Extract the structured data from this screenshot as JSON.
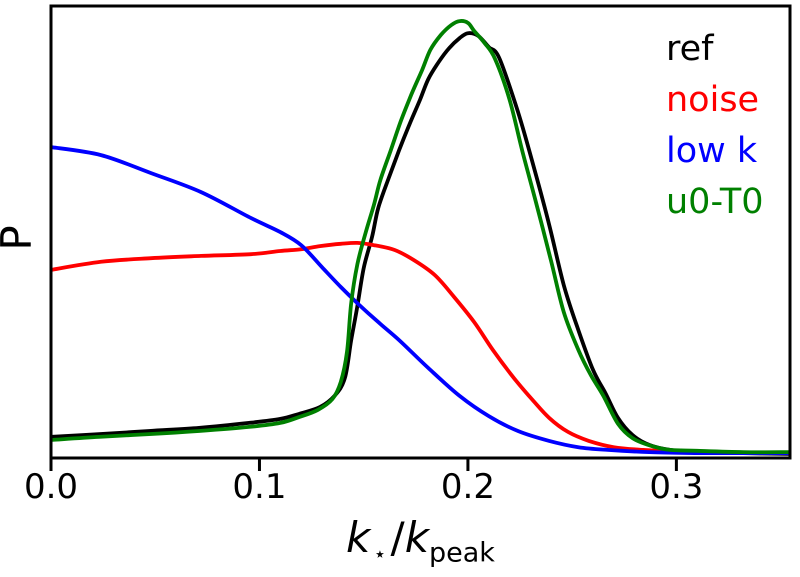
{
  "figure": {
    "background": "#ffffff",
    "frame_color": "#000000"
  },
  "chart_data": {
    "type": "line",
    "title": "",
    "ylabel": "P",
    "xlabel_text": "k⋆/kpeak",
    "xlabel_parts": {
      "k1": "k",
      "star": "⋆",
      "slash": "/",
      "k2": "k",
      "peak": "peak"
    },
    "xlim": [
      0,
      0.3545
    ],
    "ylim": [
      0,
      1.004
    ],
    "grid": false,
    "y_ticks": [],
    "x_ticks": [
      {
        "value": 0.0,
        "label": "0.0"
      },
      {
        "value": 0.1,
        "label": "0.1"
      },
      {
        "value": 0.2,
        "label": "0.2"
      },
      {
        "value": 0.3,
        "label": "0.3"
      }
    ],
    "legend": {
      "position": "upper-right",
      "items": [
        {
          "label": "ref",
          "color": "#000000"
        },
        {
          "label": "noise",
          "color": "#ff0000"
        },
        {
          "label": "low k",
          "color": "#0000ff"
        },
        {
          "label": "u0-T0",
          "color": "#008000"
        }
      ]
    },
    "note": "P values normalized to axis height (no y tick labels shown in figure)",
    "series": [
      {
        "name": "ref",
        "color": "#000000",
        "points": [
          [
            0.0,
            0.047
          ],
          [
            0.023,
            0.053
          ],
          [
            0.047,
            0.06
          ],
          [
            0.071,
            0.067
          ],
          [
            0.095,
            0.078
          ],
          [
            0.11,
            0.087
          ],
          [
            0.119,
            0.098
          ],
          [
            0.129,
            0.113
          ],
          [
            0.136,
            0.138
          ],
          [
            0.141,
            0.178
          ],
          [
            0.144,
            0.262
          ],
          [
            0.147,
            0.338
          ],
          [
            0.15,
            0.422
          ],
          [
            0.154,
            0.491
          ],
          [
            0.157,
            0.556
          ],
          [
            0.162,
            0.622
          ],
          [
            0.167,
            0.684
          ],
          [
            0.172,
            0.742
          ],
          [
            0.177,
            0.796
          ],
          [
            0.181,
            0.842
          ],
          [
            0.186,
            0.88
          ],
          [
            0.191,
            0.911
          ],
          [
            0.196,
            0.933
          ],
          [
            0.2,
            0.944
          ],
          [
            0.205,
            0.938
          ],
          [
            0.21,
            0.913
          ],
          [
            0.215,
            0.889
          ],
          [
            0.224,
            0.769
          ],
          [
            0.232,
            0.64
          ],
          [
            0.239,
            0.518
          ],
          [
            0.246,
            0.384
          ],
          [
            0.253,
            0.284
          ],
          [
            0.26,
            0.196
          ],
          [
            0.266,
            0.144
          ],
          [
            0.272,
            0.089
          ],
          [
            0.279,
            0.051
          ],
          [
            0.287,
            0.029
          ],
          [
            0.297,
            0.018
          ],
          [
            0.31,
            0.013
          ],
          [
            0.332,
            0.011
          ],
          [
            0.354,
            0.009
          ]
        ]
      },
      {
        "name": "noise",
        "color": "#ff0000",
        "points": [
          [
            0.0,
            0.418
          ],
          [
            0.024,
            0.436
          ],
          [
            0.048,
            0.444
          ],
          [
            0.072,
            0.449
          ],
          [
            0.096,
            0.453
          ],
          [
            0.11,
            0.46
          ],
          [
            0.12,
            0.464
          ],
          [
            0.129,
            0.471
          ],
          [
            0.139,
            0.476
          ],
          [
            0.147,
            0.478
          ],
          [
            0.155,
            0.473
          ],
          [
            0.165,
            0.462
          ],
          [
            0.174,
            0.44
          ],
          [
            0.184,
            0.407
          ],
          [
            0.193,
            0.36
          ],
          [
            0.203,
            0.302
          ],
          [
            0.212,
            0.24
          ],
          [
            0.222,
            0.178
          ],
          [
            0.231,
            0.129
          ],
          [
            0.239,
            0.089
          ],
          [
            0.248,
            0.058
          ],
          [
            0.258,
            0.038
          ],
          [
            0.27,
            0.024
          ],
          [
            0.284,
            0.018
          ],
          [
            0.306,
            0.013
          ],
          [
            0.332,
            0.012
          ],
          [
            0.354,
            0.011
          ]
        ]
      },
      {
        "name": "low k",
        "color": "#0000ff",
        "points": [
          [
            0.0,
            0.691
          ],
          [
            0.024,
            0.673
          ],
          [
            0.048,
            0.633
          ],
          [
            0.072,
            0.591
          ],
          [
            0.096,
            0.533
          ],
          [
            0.11,
            0.502
          ],
          [
            0.12,
            0.473
          ],
          [
            0.13,
            0.424
          ],
          [
            0.139,
            0.38
          ],
          [
            0.147,
            0.344
          ],
          [
            0.157,
            0.302
          ],
          [
            0.167,
            0.262
          ],
          [
            0.181,
            0.2
          ],
          [
            0.196,
            0.138
          ],
          [
            0.21,
            0.093
          ],
          [
            0.224,
            0.06
          ],
          [
            0.239,
            0.038
          ],
          [
            0.253,
            0.024
          ],
          [
            0.267,
            0.018
          ],
          [
            0.287,
            0.013
          ],
          [
            0.31,
            0.011
          ],
          [
            0.332,
            0.011
          ],
          [
            0.354,
            0.011
          ]
        ]
      },
      {
        "name": "u0-T0",
        "color": "#008000",
        "points": [
          [
            0.0,
            0.04
          ],
          [
            0.023,
            0.047
          ],
          [
            0.047,
            0.053
          ],
          [
            0.071,
            0.06
          ],
          [
            0.095,
            0.069
          ],
          [
            0.11,
            0.078
          ],
          [
            0.119,
            0.091
          ],
          [
            0.128,
            0.107
          ],
          [
            0.135,
            0.131
          ],
          [
            0.139,
            0.169
          ],
          [
            0.142,
            0.236
          ],
          [
            0.144,
            0.344
          ],
          [
            0.147,
            0.431
          ],
          [
            0.151,
            0.502
          ],
          [
            0.155,
            0.564
          ],
          [
            0.158,
            0.618
          ],
          [
            0.163,
            0.684
          ],
          [
            0.168,
            0.751
          ],
          [
            0.173,
            0.809
          ],
          [
            0.178,
            0.862
          ],
          [
            0.182,
            0.907
          ],
          [
            0.187,
            0.94
          ],
          [
            0.192,
            0.962
          ],
          [
            0.196,
            0.971
          ],
          [
            0.2,
            0.967
          ],
          [
            0.203,
            0.949
          ],
          [
            0.208,
            0.922
          ],
          [
            0.213,
            0.887
          ],
          [
            0.22,
            0.796
          ],
          [
            0.226,
            0.684
          ],
          [
            0.233,
            0.562
          ],
          [
            0.24,
            0.436
          ],
          [
            0.246,
            0.324
          ],
          [
            0.253,
            0.24
          ],
          [
            0.259,
            0.184
          ],
          [
            0.265,
            0.138
          ],
          [
            0.272,
            0.076
          ],
          [
            0.279,
            0.044
          ],
          [
            0.288,
            0.027
          ],
          [
            0.297,
            0.018
          ],
          [
            0.31,
            0.016
          ],
          [
            0.332,
            0.013
          ],
          [
            0.354,
            0.013
          ]
        ]
      }
    ]
  }
}
